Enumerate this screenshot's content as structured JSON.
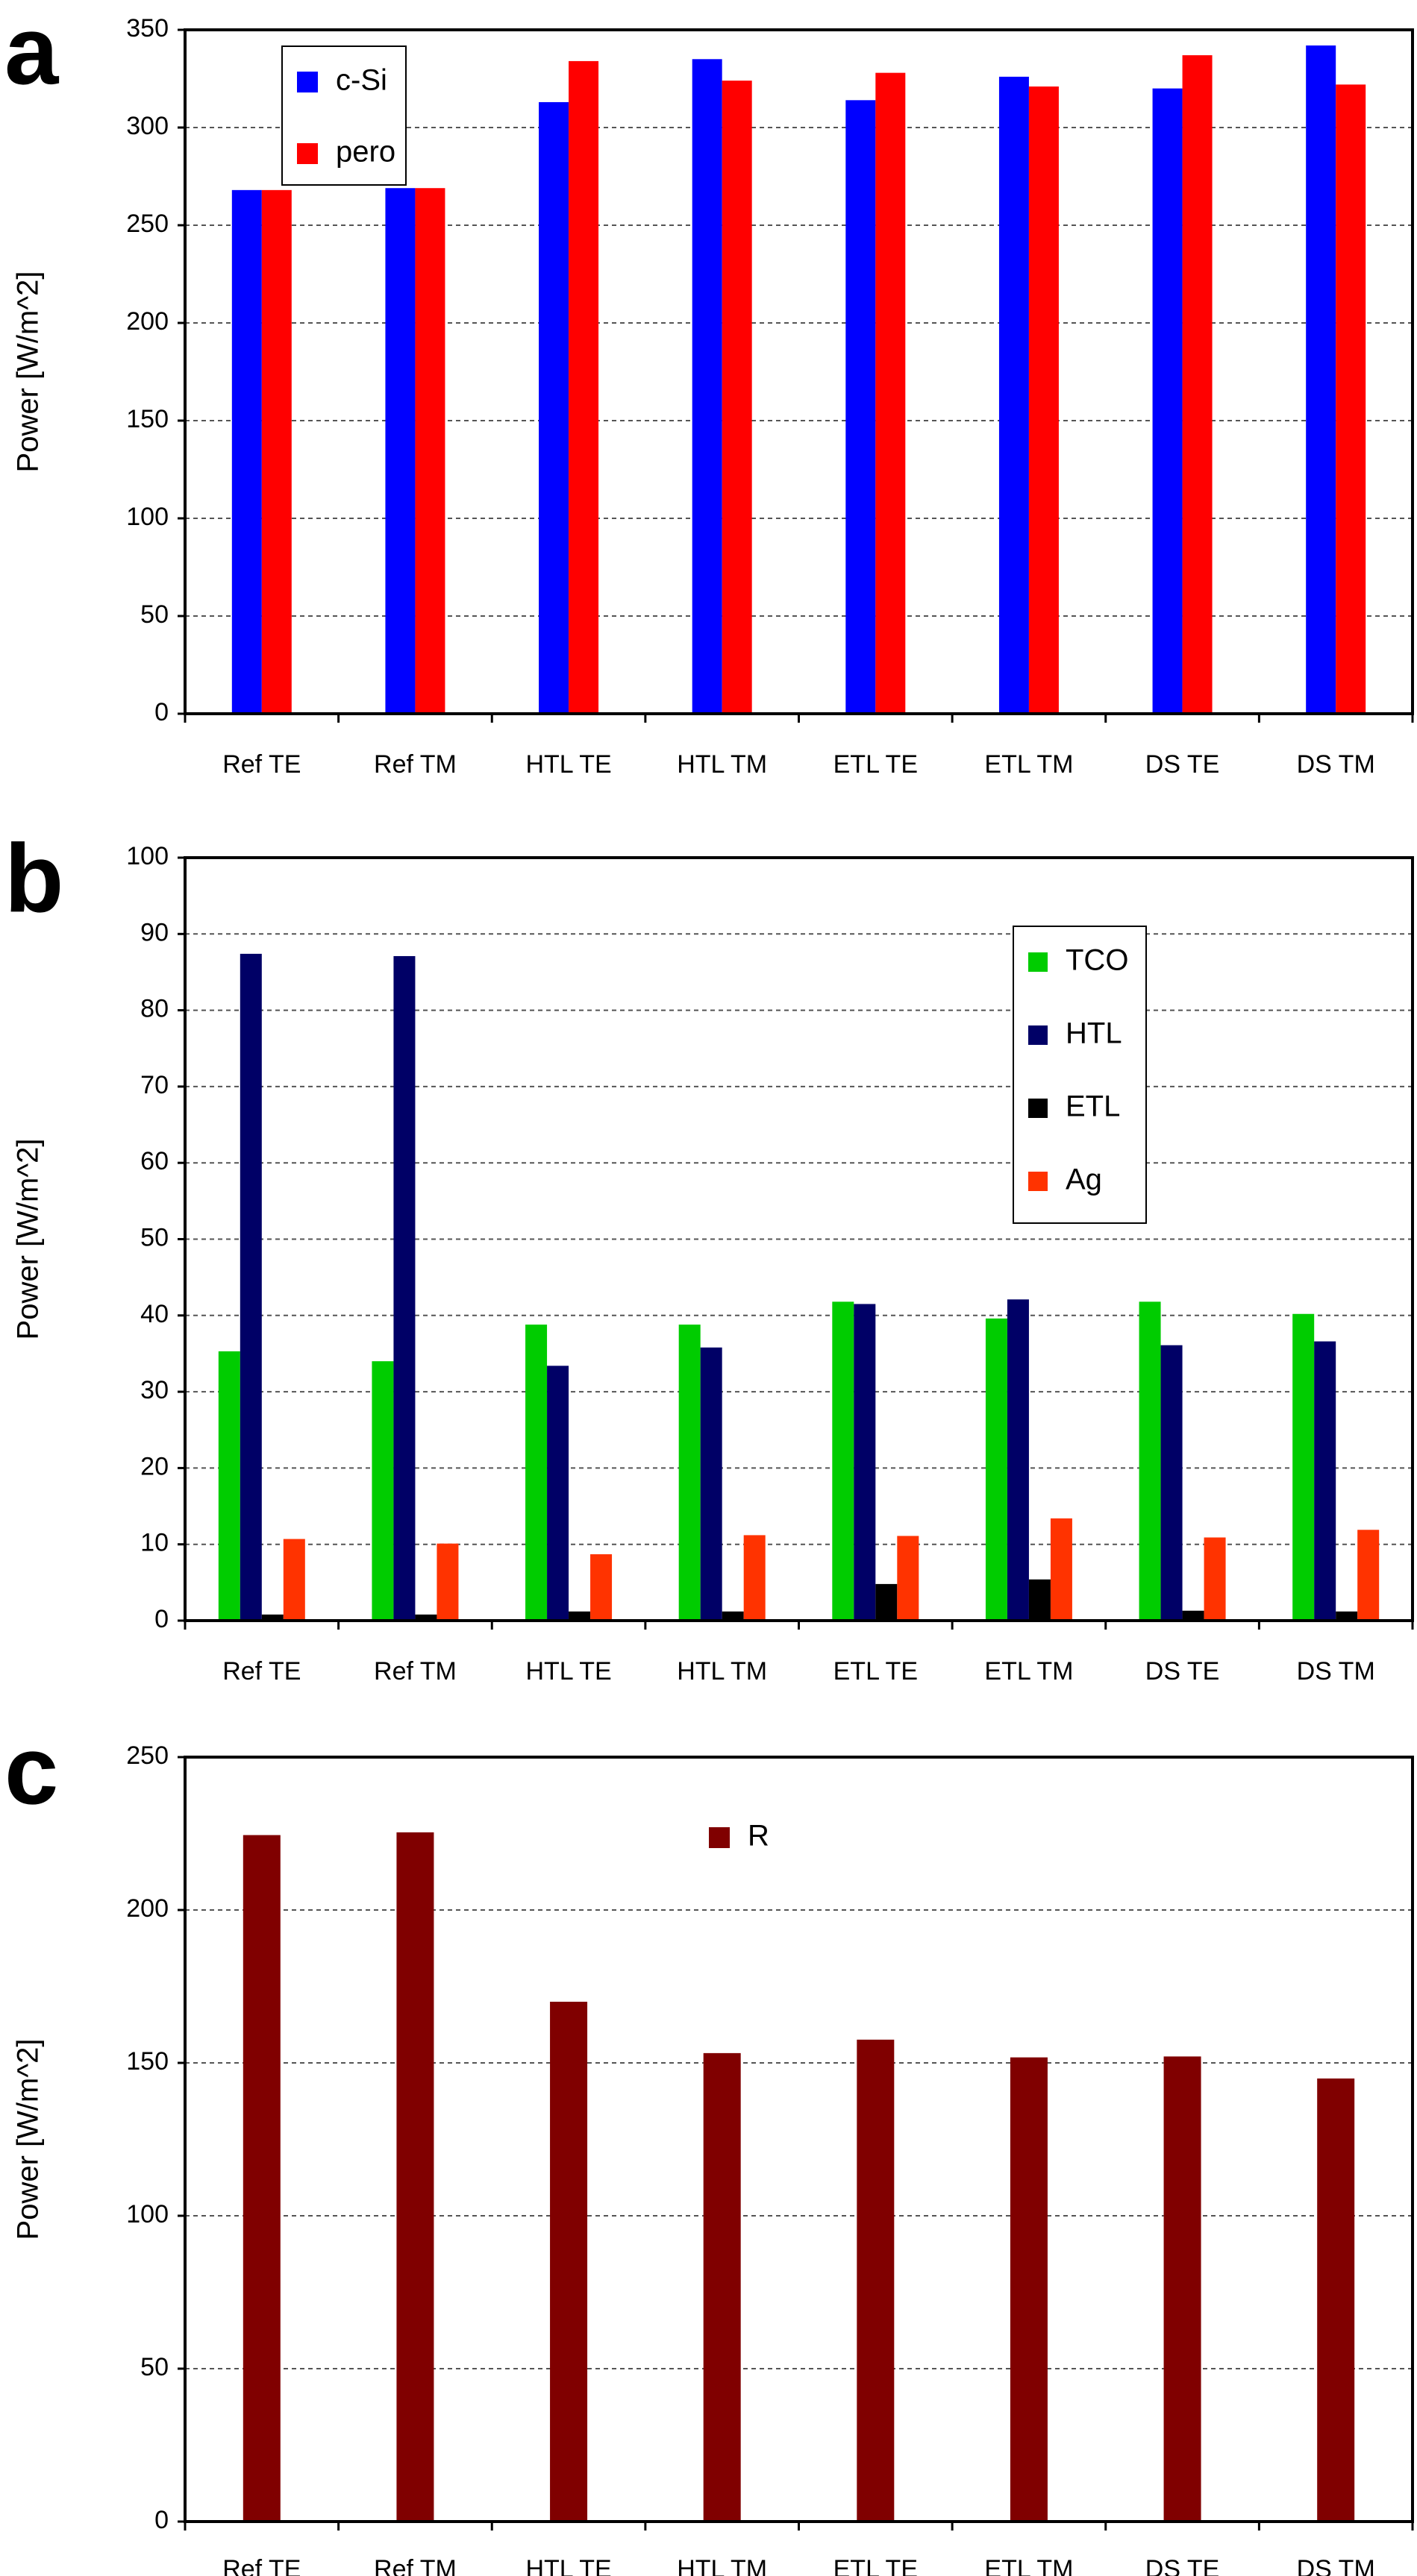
{
  "chart_data": [
    {
      "panel_label": "a",
      "type": "bar",
      "categories": [
        "Ref TE",
        "Ref TM",
        "HTL TE",
        "HTL TM",
        "ETL TE",
        "ETL TM",
        "DS TE",
        "DS TM"
      ],
      "series": [
        {
          "name": "c-Si",
          "color": "#0000ff",
          "values": [
            268,
            269,
            313,
            335,
            314,
            326,
            320,
            342
          ]
        },
        {
          "name": "pero",
          "color": "#ff0000",
          "values": [
            268,
            269,
            334,
            324,
            328,
            321,
            337,
            322
          ]
        }
      ],
      "ylabel": "Power [W/m^2]",
      "ylim": [
        0,
        350
      ],
      "yticks": [
        0,
        50,
        100,
        150,
        200,
        250,
        300,
        350
      ],
      "grid": true,
      "legend_position": "top-left"
    },
    {
      "panel_label": "b",
      "type": "bar",
      "categories": [
        "Ref TE",
        "Ref TM",
        "HTL TE",
        "HTL TM",
        "ETL TE",
        "ETL TM",
        "DS TE",
        "DS TM"
      ],
      "series": [
        {
          "name": "TCO",
          "color": "#00cc00",
          "values": [
            35.3,
            34.0,
            38.8,
            38.8,
            41.8,
            39.6,
            41.8,
            40.2
          ]
        },
        {
          "name": "HTL",
          "color": "#000066",
          "values": [
            87.4,
            87.1,
            33.4,
            35.8,
            41.5,
            42.1,
            36.1,
            36.6
          ]
        },
        {
          "name": "ETL",
          "color": "#000000",
          "values": [
            0.8,
            0.8,
            1.2,
            1.2,
            4.8,
            5.4,
            1.3,
            1.2
          ]
        },
        {
          "name": "Ag",
          "color": "#ff3300",
          "values": [
            10.7,
            10.1,
            8.7,
            11.2,
            11.1,
            13.4,
            10.9,
            11.9
          ]
        }
      ],
      "ylabel": "Power [W/m^2]",
      "ylim": [
        0,
        100
      ],
      "yticks": [
        0,
        10,
        20,
        30,
        40,
        50,
        60,
        70,
        80,
        90,
        100
      ],
      "grid": true,
      "legend_position": "top-right"
    },
    {
      "panel_label": "c",
      "type": "bar",
      "categories": [
        "Ref TE",
        "Ref TM",
        "HTL TE",
        "HTL TM",
        "ETL TE",
        "ETL TM",
        "DS TE",
        "DS TM"
      ],
      "series": [
        {
          "name": "R",
          "color": "#800000",
          "values": [
            224.5,
            225.4,
            170.0,
            153.2,
            157.6,
            151.8,
            152.1,
            144.9
          ]
        }
      ],
      "ylabel": "Power [W/m^2]",
      "ylim": [
        0,
        250
      ],
      "yticks": [
        0,
        50,
        100,
        150,
        200,
        250
      ],
      "grid": true,
      "legend_position": "top-center"
    }
  ]
}
